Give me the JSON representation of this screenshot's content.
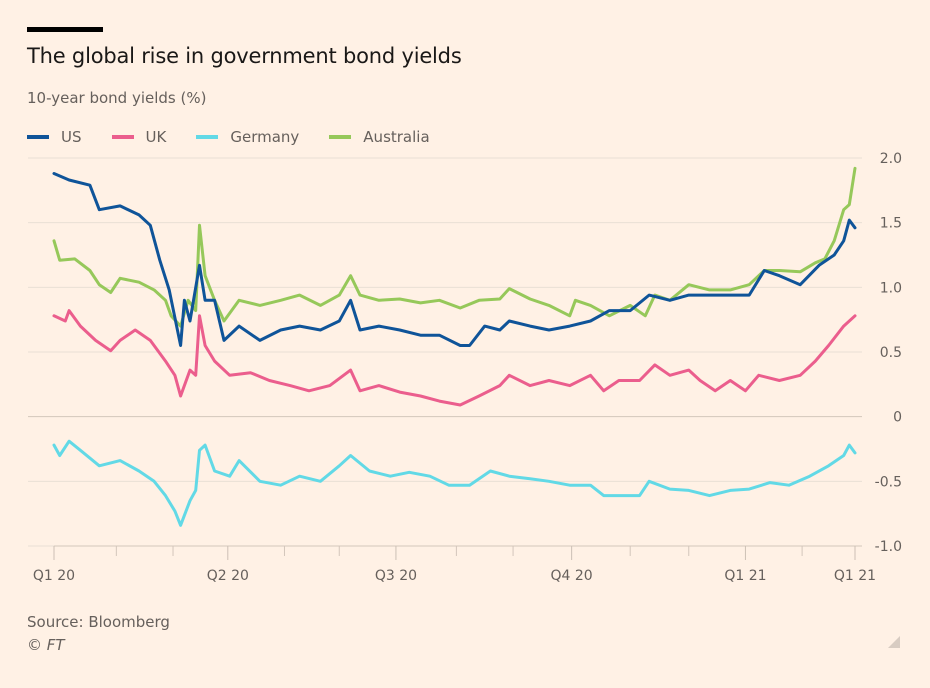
{
  "chart_data": {
    "type": "line",
    "title": "The global rise in government bond yields",
    "subtitle": "10-year bond yields (%)",
    "xlabel": "",
    "ylabel": "10-year bond yields (%)",
    "x_unit": "days since start of 2020",
    "xlim": [
      0,
      424
    ],
    "ylim": [
      -1.0,
      2.0
    ],
    "grid": true,
    "legend_position": "top-left",
    "y_ticks": [
      {
        "value": 2.0,
        "label": "2.0"
      },
      {
        "value": 1.5,
        "label": "1.5"
      },
      {
        "value": 1.0,
        "label": "1.0"
      },
      {
        "value": 0.5,
        "label": "0.5"
      },
      {
        "value": 0,
        "label": "0"
      },
      {
        "value": -0.5,
        "label": "-0.5"
      },
      {
        "value": -1.0,
        "label": "-1.0"
      }
    ],
    "x_ticks": [
      {
        "value": 0,
        "label": "Q1 20"
      },
      {
        "value": 92,
        "label": "Q2 20"
      },
      {
        "value": 181,
        "label": "Q3 20"
      },
      {
        "value": 274,
        "label": "Q4 20"
      },
      {
        "value": 366,
        "label": "Q1 21"
      },
      {
        "value": 424,
        "label": "Q1 21"
      }
    ],
    "x_minor_ticks": [
      33,
      63,
      122,
      151,
      213,
      243,
      305,
      336,
      396
    ],
    "series": [
      {
        "name": "US",
        "color": "#0f5499",
        "points": [
          [
            0,
            1.88
          ],
          [
            8,
            1.83
          ],
          [
            19,
            1.79
          ],
          [
            24,
            1.6
          ],
          [
            35,
            1.63
          ],
          [
            45,
            1.56
          ],
          [
            51,
            1.48
          ],
          [
            56,
            1.21
          ],
          [
            61,
            0.98
          ],
          [
            67,
            0.55
          ],
          [
            69,
            0.9
          ],
          [
            72,
            0.74
          ],
          [
            77,
            1.17
          ],
          [
            80,
            0.9
          ],
          [
            85,
            0.9
          ],
          [
            90,
            0.59
          ],
          [
            98,
            0.7
          ],
          [
            109,
            0.59
          ],
          [
            120,
            0.67
          ],
          [
            130,
            0.7
          ],
          [
            141,
            0.67
          ],
          [
            151,
            0.74
          ],
          [
            157,
            0.9
          ],
          [
            162,
            0.67
          ],
          [
            172,
            0.7
          ],
          [
            183,
            0.67
          ],
          [
            194,
            0.63
          ],
          [
            204,
            0.63
          ],
          [
            215,
            0.55
          ],
          [
            220,
            0.55
          ],
          [
            228,
            0.7
          ],
          [
            236,
            0.67
          ],
          [
            241,
            0.74
          ],
          [
            252,
            0.7
          ],
          [
            262,
            0.67
          ],
          [
            273,
            0.7
          ],
          [
            284,
            0.74
          ],
          [
            294,
            0.82
          ],
          [
            305,
            0.82
          ],
          [
            315,
            0.94
          ],
          [
            326,
            0.9
          ],
          [
            336,
            0.94
          ],
          [
            347,
            0.94
          ],
          [
            358,
            0.94
          ],
          [
            368,
            0.94
          ],
          [
            376,
            1.13
          ],
          [
            384,
            1.09
          ],
          [
            395,
            1.02
          ],
          [
            405,
            1.17
          ],
          [
            413,
            1.25
          ],
          [
            418,
            1.36
          ],
          [
            421,
            1.52
          ],
          [
            424,
            1.46
          ]
        ]
      },
      {
        "name": "UK",
        "color": "#eb5e8d",
        "points": [
          [
            0,
            0.78
          ],
          [
            6,
            0.74
          ],
          [
            8,
            0.82
          ],
          [
            14,
            0.7
          ],
          [
            22,
            0.59
          ],
          [
            30,
            0.51
          ],
          [
            35,
            0.59
          ],
          [
            43,
            0.67
          ],
          [
            51,
            0.59
          ],
          [
            59,
            0.43
          ],
          [
            64,
            0.32
          ],
          [
            67,
            0.16
          ],
          [
            72,
            0.36
          ],
          [
            75,
            0.32
          ],
          [
            77,
            0.78
          ],
          [
            80,
            0.55
          ],
          [
            85,
            0.43
          ],
          [
            93,
            0.32
          ],
          [
            104,
            0.34
          ],
          [
            114,
            0.28
          ],
          [
            125,
            0.24
          ],
          [
            135,
            0.2
          ],
          [
            146,
            0.24
          ],
          [
            157,
            0.36
          ],
          [
            162,
            0.2
          ],
          [
            172,
            0.24
          ],
          [
            183,
            0.19
          ],
          [
            194,
            0.16
          ],
          [
            204,
            0.12
          ],
          [
            215,
            0.09
          ],
          [
            225,
            0.16
          ],
          [
            236,
            0.24
          ],
          [
            241,
            0.32
          ],
          [
            252,
            0.24
          ],
          [
            262,
            0.28
          ],
          [
            273,
            0.24
          ],
          [
            284,
            0.32
          ],
          [
            291,
            0.2
          ],
          [
            299,
            0.28
          ],
          [
            310,
            0.28
          ],
          [
            318,
            0.4
          ],
          [
            326,
            0.32
          ],
          [
            336,
            0.36
          ],
          [
            342,
            0.28
          ],
          [
            350,
            0.2
          ],
          [
            358,
            0.28
          ],
          [
            366,
            0.2
          ],
          [
            373,
            0.32
          ],
          [
            384,
            0.28
          ],
          [
            395,
            0.32
          ],
          [
            403,
            0.43
          ],
          [
            410,
            0.55
          ],
          [
            418,
            0.7
          ],
          [
            424,
            0.78
          ]
        ]
      },
      {
        "name": "Germany",
        "color": "#62d9e6",
        "points": [
          [
            0,
            -0.22
          ],
          [
            3,
            -0.3
          ],
          [
            8,
            -0.19
          ],
          [
            14,
            -0.26
          ],
          [
            24,
            -0.38
          ],
          [
            35,
            -0.34
          ],
          [
            45,
            -0.42
          ],
          [
            53,
            -0.5
          ],
          [
            59,
            -0.61
          ],
          [
            64,
            -0.73
          ],
          [
            67,
            -0.84
          ],
          [
            72,
            -0.65
          ],
          [
            75,
            -0.57
          ],
          [
            77,
            -0.26
          ],
          [
            80,
            -0.22
          ],
          [
            85,
            -0.42
          ],
          [
            93,
            -0.46
          ],
          [
            98,
            -0.34
          ],
          [
            109,
            -0.5
          ],
          [
            120,
            -0.53
          ],
          [
            130,
            -0.46
          ],
          [
            141,
            -0.5
          ],
          [
            151,
            -0.38
          ],
          [
            157,
            -0.3
          ],
          [
            167,
            -0.42
          ],
          [
            178,
            -0.46
          ],
          [
            188,
            -0.43
          ],
          [
            199,
            -0.46
          ],
          [
            209,
            -0.53
          ],
          [
            220,
            -0.53
          ],
          [
            231,
            -0.42
          ],
          [
            241,
            -0.46
          ],
          [
            252,
            -0.48
          ],
          [
            262,
            -0.5
          ],
          [
            273,
            -0.53
          ],
          [
            284,
            -0.53
          ],
          [
            291,
            -0.61
          ],
          [
            299,
            -0.61
          ],
          [
            310,
            -0.61
          ],
          [
            315,
            -0.5
          ],
          [
            326,
            -0.56
          ],
          [
            336,
            -0.57
          ],
          [
            347,
            -0.61
          ],
          [
            358,
            -0.57
          ],
          [
            368,
            -0.56
          ],
          [
            379,
            -0.51
          ],
          [
            389,
            -0.53
          ],
          [
            400,
            -0.46
          ],
          [
            410,
            -0.38
          ],
          [
            418,
            -0.3
          ],
          [
            421,
            -0.22
          ],
          [
            424,
            -0.28
          ]
        ]
      },
      {
        "name": "Australia",
        "color": "#96c85a",
        "points": [
          [
            0,
            1.36
          ],
          [
            3,
            1.21
          ],
          [
            11,
            1.22
          ],
          [
            19,
            1.13
          ],
          [
            24,
            1.02
          ],
          [
            30,
            0.96
          ],
          [
            35,
            1.07
          ],
          [
            45,
            1.04
          ],
          [
            53,
            0.98
          ],
          [
            59,
            0.9
          ],
          [
            62,
            0.78
          ],
          [
            67,
            0.7
          ],
          [
            71,
            0.9
          ],
          [
            75,
            0.82
          ],
          [
            77,
            1.48
          ],
          [
            80,
            1.09
          ],
          [
            85,
            0.9
          ],
          [
            90,
            0.74
          ],
          [
            98,
            0.9
          ],
          [
            109,
            0.86
          ],
          [
            120,
            0.9
          ],
          [
            130,
            0.94
          ],
          [
            141,
            0.86
          ],
          [
            151,
            0.94
          ],
          [
            157,
            1.09
          ],
          [
            162,
            0.94
          ],
          [
            172,
            0.9
          ],
          [
            183,
            0.91
          ],
          [
            194,
            0.88
          ],
          [
            204,
            0.9
          ],
          [
            215,
            0.84
          ],
          [
            225,
            0.9
          ],
          [
            236,
            0.91
          ],
          [
            241,
            0.99
          ],
          [
            252,
            0.91
          ],
          [
            262,
            0.86
          ],
          [
            273,
            0.78
          ],
          [
            276,
            0.9
          ],
          [
            284,
            0.86
          ],
          [
            294,
            0.78
          ],
          [
            305,
            0.86
          ],
          [
            313,
            0.78
          ],
          [
            318,
            0.94
          ],
          [
            326,
            0.9
          ],
          [
            336,
            1.02
          ],
          [
            347,
            0.98
          ],
          [
            358,
            0.98
          ],
          [
            368,
            1.02
          ],
          [
            376,
            1.13
          ],
          [
            384,
            1.13
          ],
          [
            395,
            1.12
          ],
          [
            403,
            1.19
          ],
          [
            408,
            1.22
          ],
          [
            413,
            1.36
          ],
          [
            418,
            1.6
          ],
          [
            421,
            1.64
          ],
          [
            424,
            1.92
          ]
        ]
      }
    ]
  },
  "source": "Source: Bloomberg",
  "copyright": "© FT"
}
